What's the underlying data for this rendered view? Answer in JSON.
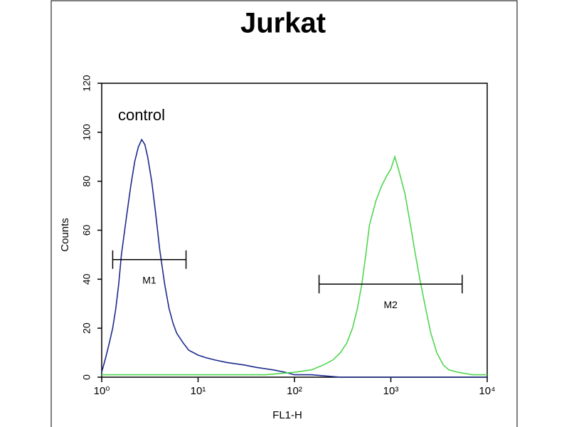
{
  "chart_data": {
    "type": "line",
    "title": "Jurkat",
    "xlabel": "FL1-H",
    "ylabel": "Counts",
    "annotation": "control",
    "xscale": "log",
    "xlim": [
      1,
      10000
    ],
    "ylim": [
      0,
      120
    ],
    "xticks": [
      {
        "value": 1,
        "label": "10⁰"
      },
      {
        "value": 10,
        "label": "10¹"
      },
      {
        "value": 100,
        "label": "10²"
      },
      {
        "value": 1000,
        "label": "10³"
      },
      {
        "value": 10000,
        "label": "10⁴"
      }
    ],
    "yticks": [
      0,
      20,
      40,
      60,
      80,
      100,
      120
    ],
    "series": [
      {
        "name": "control",
        "color": "#1c2a8a",
        "x": [
          1,
          1.1,
          1.2,
          1.3,
          1.4,
          1.5,
          1.6,
          1.8,
          2,
          2.2,
          2.4,
          2.6,
          2.8,
          3,
          3.3,
          3.6,
          4,
          4.5,
          5,
          5.5,
          6,
          7,
          8,
          10,
          12,
          15,
          20,
          30,
          40,
          60,
          80,
          100,
          150,
          300,
          1000,
          10000
        ],
        "values": [
          2,
          8,
          14,
          20,
          28,
          38,
          50,
          65,
          78,
          88,
          94,
          97,
          95,
          90,
          80,
          68,
          52,
          38,
          28,
          22,
          18,
          14,
          11,
          9,
          8,
          7,
          6,
          5,
          4,
          3,
          2,
          1,
          1,
          0,
          0,
          0
        ]
      },
      {
        "color": "#4fd64f",
        "x": [
          1,
          10,
          50,
          100,
          150,
          200,
          250,
          300,
          350,
          400,
          450,
          500,
          550,
          600,
          700,
          800,
          900,
          1000,
          1100,
          1200,
          1400,
          1600,
          1800,
          2000,
          2300,
          2600,
          3000,
          3500,
          4000,
          5000,
          7000,
          10000
        ],
        "values": [
          1,
          1,
          1,
          2,
          3,
          5,
          7,
          10,
          14,
          20,
          28,
          38,
          50,
          62,
          72,
          78,
          82,
          85,
          90,
          85,
          75,
          62,
          50,
          40,
          28,
          18,
          10,
          5,
          3,
          2,
          1,
          1
        ]
      }
    ],
    "markers": [
      {
        "label": "M1",
        "x": [
          1.3,
          7.5
        ],
        "y": 48
      },
      {
        "label": "M2",
        "x": [
          180,
          5500
        ],
        "y": 38
      }
    ]
  }
}
